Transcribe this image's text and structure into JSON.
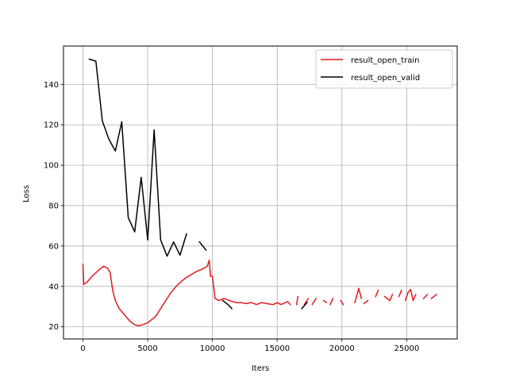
{
  "chart_data": {
    "type": "line",
    "title": "",
    "xlabel": "Iters",
    "ylabel": "Loss",
    "xlim": [
      -1500,
      28900
    ],
    "ylim": [
      14,
      159
    ],
    "xticks": [
      0,
      5000,
      10000,
      15000,
      20000,
      25000
    ],
    "yticks": [
      20,
      40,
      60,
      80,
      100,
      120,
      140
    ],
    "grid": true,
    "legend_position": "top-right",
    "series": [
      {
        "name": "result_open_train",
        "color": "#e41a1c",
        "segments": [
          [
            [
              0,
              51
            ],
            [
              60,
              41
            ],
            [
              300,
              42
            ],
            [
              700,
              45
            ],
            [
              1200,
              48
            ],
            [
              1600,
              50
            ],
            [
              1900,
              49
            ],
            [
              2100,
              47
            ],
            [
              2300,
              38
            ],
            [
              2500,
              33
            ],
            [
              2800,
              29
            ],
            [
              3200,
              26
            ],
            [
              3600,
              23
            ],
            [
              4000,
              21
            ],
            [
              4300,
              20.5
            ],
            [
              4600,
              21
            ],
            [
              5000,
              22
            ],
            [
              5300,
              23.5
            ],
            [
              5600,
              25
            ],
            [
              5900,
              28
            ],
            [
              6200,
              31
            ],
            [
              6500,
              34
            ],
            [
              6800,
              37
            ],
            [
              7200,
              40
            ],
            [
              7600,
              42.5
            ],
            [
              8000,
              44.5
            ],
            [
              8400,
              46
            ],
            [
              8800,
              47.5
            ],
            [
              9200,
              48.5
            ],
            [
              9600,
              50
            ],
            [
              9750,
              53
            ],
            [
              9850,
              45
            ],
            [
              10000,
              45
            ],
            [
              10200,
              34
            ],
            [
              10500,
              33
            ],
            [
              10900,
              34
            ],
            [
              11300,
              33
            ],
            [
              11800,
              32
            ],
            [
              12200,
              32
            ],
            [
              12600,
              31.5
            ],
            [
              13000,
              32
            ],
            [
              13400,
              31
            ],
            [
              13800,
              32
            ],
            [
              14200,
              31.5
            ],
            [
              14700,
              31
            ],
            [
              15000,
              32
            ],
            [
              15300,
              31
            ],
            [
              15800,
              32.5
            ],
            [
              16000,
              31
            ]
          ],
          [
            [
              16500,
              31
            ],
            [
              16600,
              35
            ]
          ],
          [
            [
              17100,
              31
            ],
            [
              17400,
              34
            ]
          ],
          [
            [
              17700,
              31
            ],
            [
              18000,
              34
            ]
          ],
          [
            [
              18600,
              33
            ],
            [
              18800,
              32
            ]
          ],
          [
            [
              19100,
              31
            ],
            [
              19300,
              34
            ]
          ],
          [
            [
              19900,
              33
            ],
            [
              20100,
              31
            ]
          ],
          [
            [
              21000,
              32
            ],
            [
              21300,
              39
            ],
            [
              21500,
              34
            ]
          ],
          [
            [
              21700,
              31.5
            ],
            [
              22000,
              33
            ]
          ],
          [
            [
              22600,
              35
            ],
            [
              22800,
              38
            ]
          ],
          [
            [
              23300,
              35
            ],
            [
              23700,
              33
            ],
            [
              23900,
              36
            ]
          ],
          [
            [
              24400,
              35
            ],
            [
              24600,
              38
            ]
          ],
          [
            [
              24900,
              33
            ],
            [
              25100,
              37
            ],
            [
              25300,
              38.5
            ],
            [
              25500,
              33
            ],
            [
              25700,
              36
            ]
          ],
          [
            [
              26300,
              34
            ],
            [
              26600,
              36
            ]
          ],
          [
            [
              26900,
              34
            ],
            [
              27300,
              36
            ]
          ]
        ]
      },
      {
        "name": "result_open_valid",
        "color": "#000000",
        "segments": [
          [
            [
              500,
              152.5
            ],
            [
              1000,
              151.5
            ],
            [
              1500,
              122
            ],
            [
              2000,
              113
            ],
            [
              2500,
              107
            ],
            [
              3000,
              121.5
            ],
            [
              3500,
              74
            ],
            [
              4000,
              67
            ],
            [
              4500,
              94
            ],
            [
              5000,
              63
            ],
            [
              5500,
              117.5
            ],
            [
              6000,
              63
            ],
            [
              6500,
              55
            ],
            [
              7000,
              62
            ],
            [
              7500,
              55.5
            ],
            [
              8000,
              66
            ]
          ],
          [
            [
              9000,
              62
            ],
            [
              9500,
              58
            ]
          ],
          [
            [
              10800,
              33
            ],
            [
              11200,
              31
            ],
            [
              11500,
              29
            ]
          ],
          [
            [
              16900,
              29
            ],
            [
              17300,
              32
            ]
          ]
        ]
      }
    ]
  }
}
